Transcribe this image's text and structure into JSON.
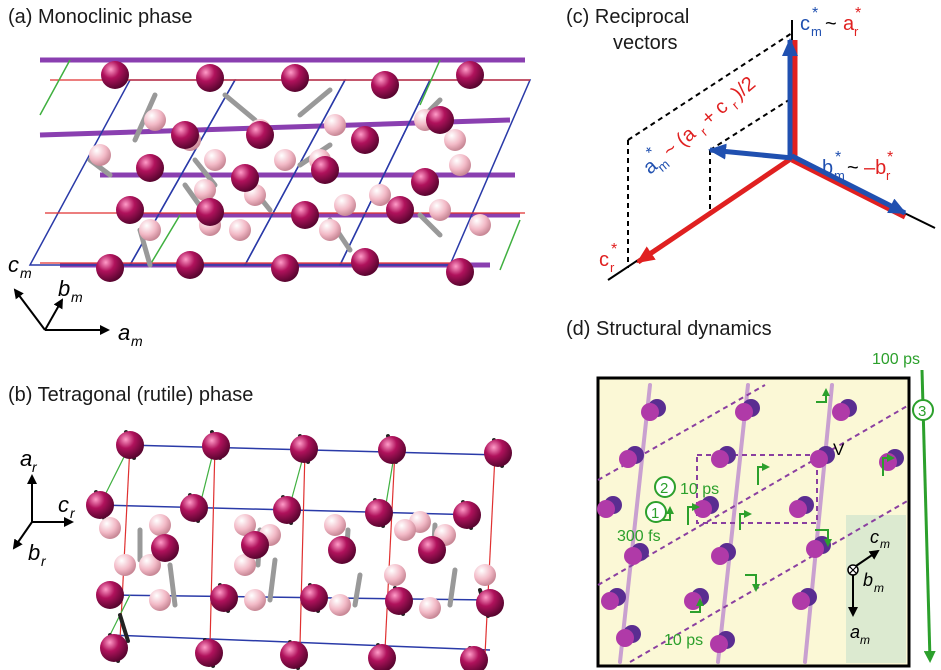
{
  "panels": {
    "a": {
      "label": "(a)  Monoclinic phase",
      "axes": {
        "c": "c",
        "c_sub": "m",
        "b": "b",
        "b_sub": "m",
        "a": "a",
        "a_sub": "m"
      }
    },
    "b": {
      "label": "(b)  Tetragonal (rutile) phase",
      "axes": {
        "a": "a",
        "a_sub": "r",
        "c": "c",
        "c_sub": "r",
        "b": "b",
        "b_sub": "r"
      }
    },
    "c": {
      "label_line1": "(c)  Reciprocal",
      "label_line2": "vectors",
      "cm": "c",
      "cm_sub": "m",
      "cm_star": "*",
      "tilde": "~",
      "ar": "a",
      "ar_sub": "r",
      "ar_star": "*",
      "am": "a",
      "am_sub": "m",
      "am_star": "*",
      "am_expr": "~ (a",
      "am_expr_sub": "r",
      "am_expr_mid": " + c",
      "am_expr_sub2": "r",
      "am_expr_end": ")/2",
      "bm": "b",
      "bm_sub": "m",
      "bm_star": "*",
      "minus_br": "–b",
      "br_sub": "r",
      "br_star": "*",
      "cr": "c",
      "cr_sub": "r",
      "cr_star": "*"
    },
    "d": {
      "label": "(d)  Structural dynamics",
      "time_100ps": "100 ps",
      "step3": "3",
      "step2": "2",
      "time_10ps_a": "10 ps",
      "step1": "1",
      "time_300fs": "300 fs",
      "time_10ps_b": "10 ps",
      "v_label": "V",
      "axes": {
        "c": "c",
        "c_sub": "m",
        "b": "b",
        "b_sub": "m",
        "a": "a",
        "a_sub": "m"
      }
    }
  },
  "colors": {
    "vanadium": "#a8185a",
    "oxygen": "#f0b8c4",
    "blue_vec": "#2050b0",
    "red_vec": "#e02020",
    "green": "#2ca02c",
    "purple_atom": "#5a2d91",
    "magenta_atom": "#b03aa8",
    "bg_panel_d": "#fbf8d6"
  }
}
